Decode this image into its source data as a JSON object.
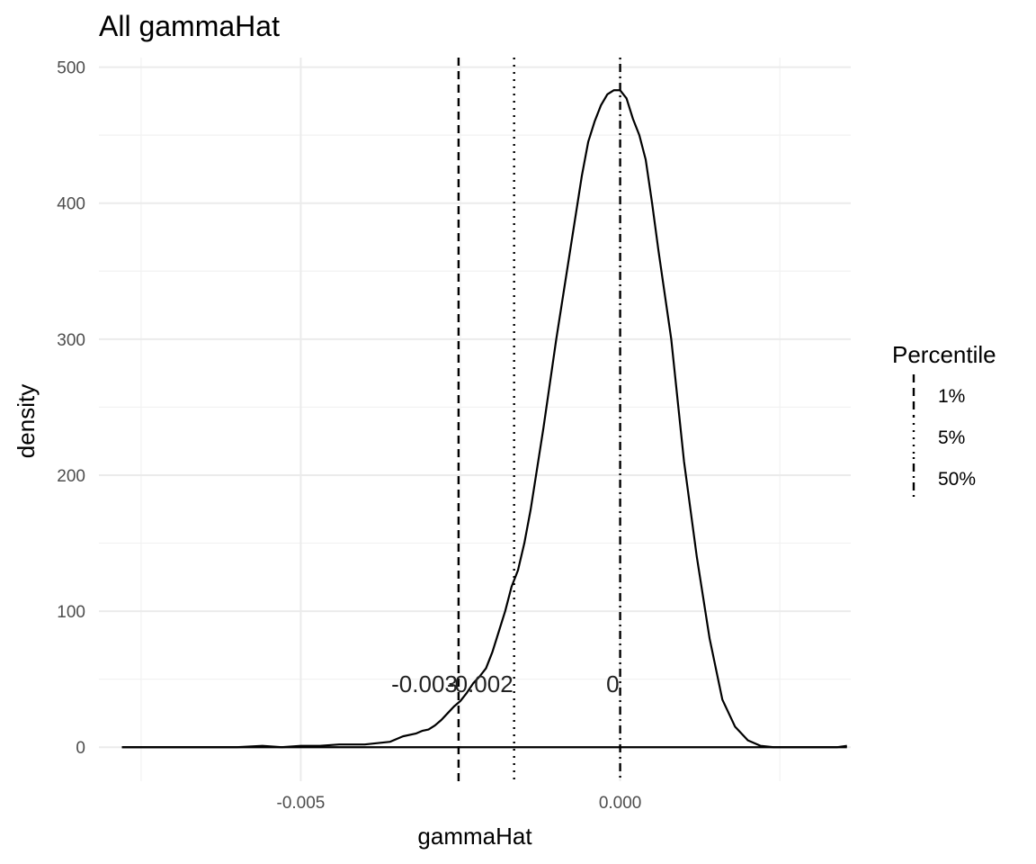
{
  "chart_data": {
    "type": "line",
    "title": "All gammaHat",
    "xlabel": "gammaHat",
    "ylabel": "density",
    "xlim": [
      -0.00816,
      0.00361
    ],
    "ylim": [
      -25,
      507
    ],
    "x_ticks": [
      -0.005,
      0.0
    ],
    "x_tick_labels": [
      "-0.005",
      "0.000"
    ],
    "y_ticks": [
      0,
      100,
      200,
      300,
      400,
      500
    ],
    "y_tick_labels": [
      "0",
      "100",
      "200",
      "300",
      "400",
      "500"
    ],
    "grid": true,
    "series": [
      {
        "x": [
          -0.0078,
          -0.007,
          -0.006,
          -0.0056,
          -0.0053,
          -0.005,
          -0.0047,
          -0.0044,
          -0.0042,
          -0.004,
          -0.0038,
          -0.0036,
          -0.0035,
          -0.0034,
          -0.0032,
          -0.0031,
          -0.003,
          -0.0029,
          -0.0028,
          -0.0027,
          -0.0026,
          -0.0025,
          -0.0024,
          -0.0023,
          -0.0022,
          -0.0021,
          -0.002,
          -0.0019,
          -0.0018,
          -0.0017,
          -0.0016,
          -0.0015,
          -0.0014,
          -0.0012,
          -0.001,
          -0.0008,
          -0.0006,
          -0.0005,
          -0.0004,
          -0.0003,
          -0.0002,
          -0.0001,
          0.0,
          0.0001,
          0.0002,
          0.0003,
          0.0004,
          0.0005,
          0.0006,
          0.0008,
          0.001,
          0.0012,
          0.0014,
          0.0016,
          0.0018,
          0.002,
          0.0022,
          0.0024,
          0.0026,
          0.0028,
          0.003,
          0.0032,
          0.0034,
          0.00355
        ],
        "y": [
          0,
          0,
          0,
          1,
          0,
          1,
          1,
          2,
          2,
          2,
          3,
          4,
          6,
          8,
          10,
          12,
          13,
          16,
          20,
          25,
          30,
          34,
          40,
          47,
          52,
          58,
          70,
          85,
          100,
          118,
          130,
          150,
          175,
          235,
          300,
          360,
          420,
          445,
          460,
          472,
          480,
          483,
          483,
          477,
          462,
          450,
          432,
          400,
          365,
          300,
          210,
          140,
          80,
          35,
          15,
          5,
          1,
          0,
          0,
          0,
          0,
          0,
          0,
          1
        ]
      }
    ],
    "vlines": [
      {
        "x": -0.00253,
        "percentile": "1%",
        "style": "dashed",
        "label": "-0.003"
      },
      {
        "x": -0.00166,
        "percentile": "5%",
        "style": "dotted",
        "label": "-0.002"
      },
      {
        "x": 0.0,
        "percentile": "50%",
        "style": "dotdash",
        "label": "0"
      }
    ],
    "legend": {
      "title": "Percentile",
      "placement": "right",
      "items": [
        {
          "label": "1%",
          "style": "dashed"
        },
        {
          "label": "5%",
          "style": "dotted"
        },
        {
          "label": "50%",
          "style": "dotdash"
        }
      ]
    }
  }
}
